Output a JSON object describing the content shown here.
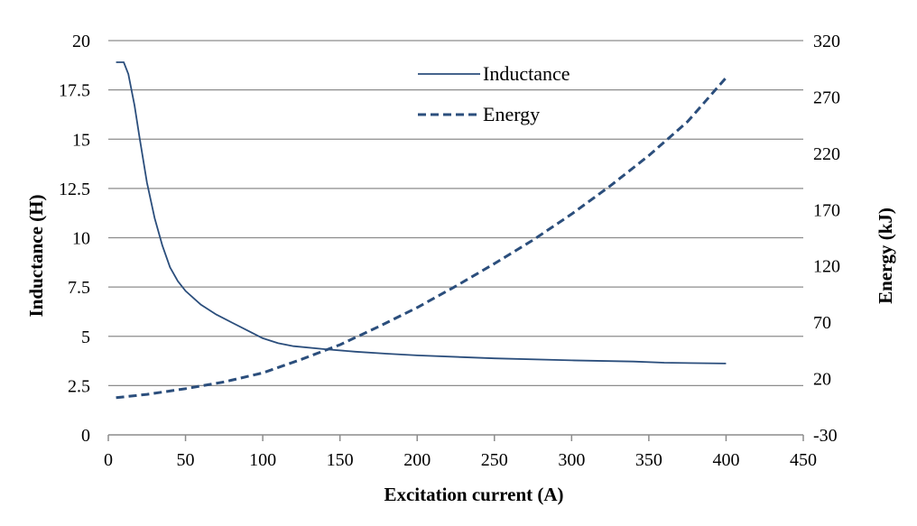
{
  "chart_data": {
    "type": "line",
    "title": "",
    "xlabel": "Excitation current (A)",
    "ylabel": "Inductance (H)",
    "y2label": "Energy (kJ)",
    "xlim": [
      0,
      450
    ],
    "ylim": [
      0,
      20
    ],
    "y2lim": [
      -30,
      320
    ],
    "x_ticks": [
      "0",
      "50",
      "100",
      "150",
      "200",
      "250",
      "300",
      "350",
      "400",
      "450"
    ],
    "y_ticks": [
      "0",
      "2.5",
      "5",
      "7.5",
      "10",
      "12.5",
      "15",
      "17.5",
      "20"
    ],
    "y2_ticks": [
      "-30",
      "20",
      "70",
      "120",
      "170",
      "220",
      "270",
      "320"
    ],
    "x_tick_values": [
      0,
      50,
      100,
      150,
      200,
      250,
      300,
      350,
      400,
      450
    ],
    "y_tick_values": [
      0,
      2.5,
      5,
      7.5,
      10,
      12.5,
      15,
      17.5,
      20
    ],
    "y2_tick_values": [
      -30,
      20,
      70,
      120,
      170,
      220,
      270,
      320
    ],
    "grid": "horizontal",
    "legend_position": "top-center",
    "series": [
      {
        "name": "Inductance",
        "axis": "left",
        "style": "solid",
        "color": "#2b4e7c",
        "x": [
          5,
          10,
          13,
          17,
          20,
          25,
          30,
          35,
          40,
          45,
          50,
          60,
          70,
          80,
          90,
          100,
          110,
          120,
          140,
          160,
          180,
          200,
          250,
          300,
          340,
          360,
          400
        ],
        "y": [
          18.9,
          18.9,
          18.3,
          16.7,
          15.2,
          12.8,
          11.0,
          9.6,
          8.5,
          7.8,
          7.3,
          6.6,
          6.1,
          5.7,
          5.3,
          4.9,
          4.65,
          4.5,
          4.35,
          4.22,
          4.12,
          4.03,
          3.88,
          3.78,
          3.72,
          3.66,
          3.62
        ]
      },
      {
        "name": "Energy",
        "axis": "right",
        "style": "dashed",
        "color": "#2b4e7c",
        "x": [
          5,
          25,
          50,
          75,
          100,
          125,
          150,
          175,
          200,
          225,
          250,
          275,
          300,
          325,
          350,
          375,
          400
        ],
        "y": [
          3,
          6,
          11,
          17,
          25,
          37,
          50,
          66,
          83,
          102,
          122,
          143,
          166,
          191,
          218,
          248,
          287
        ]
      }
    ]
  }
}
